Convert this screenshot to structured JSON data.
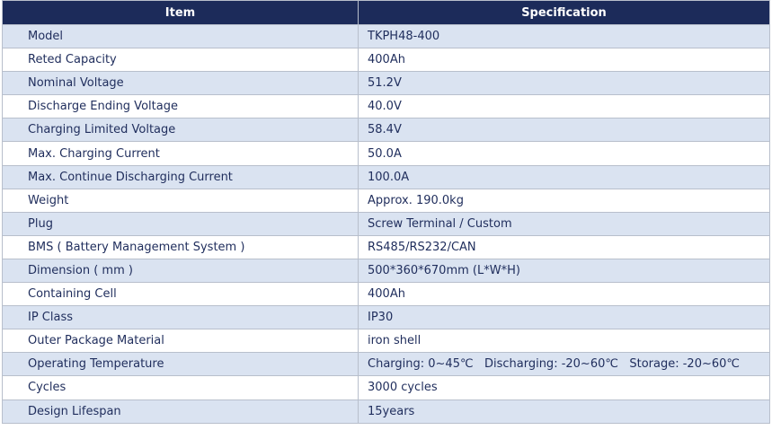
{
  "table": {
    "header": [
      "Item",
      "Specification"
    ],
    "rows": [
      [
        "Model",
        "TKPH48-400"
      ],
      [
        "Reted Capacity",
        "400Ah"
      ],
      [
        "Nominal Voltage",
        "51.2V"
      ],
      [
        "Discharge Ending Voltage",
        "40.0V"
      ],
      [
        "Charging Limited Voltage",
        "58.4V"
      ],
      [
        "Max. Charging Current",
        "50.0A"
      ],
      [
        "Max. Continue Discharging Current",
        "100.0A"
      ],
      [
        "Weight",
        "Approx. 190.0kg"
      ],
      [
        "Plug",
        "Screw Terminal / Custom"
      ],
      [
        "BMS ( Battery Management System )",
        "RS485/RS232/CAN"
      ],
      [
        "Dimension ( mm )",
        "500*360*670mm (L*W*H)"
      ],
      [
        "Containing Cell",
        "400Ah"
      ],
      [
        "IP Class",
        "IP30"
      ],
      [
        "Outer Package Material",
        "iron shell"
      ],
      [
        "Operating Temperature",
        "Charging: 0~45℃   Discharging: -20~60℃   Storage: -20~60℃"
      ],
      [
        "Cycles",
        "3000 cycles"
      ],
      [
        "Design Lifespan",
        "15years"
      ]
    ]
  }
}
